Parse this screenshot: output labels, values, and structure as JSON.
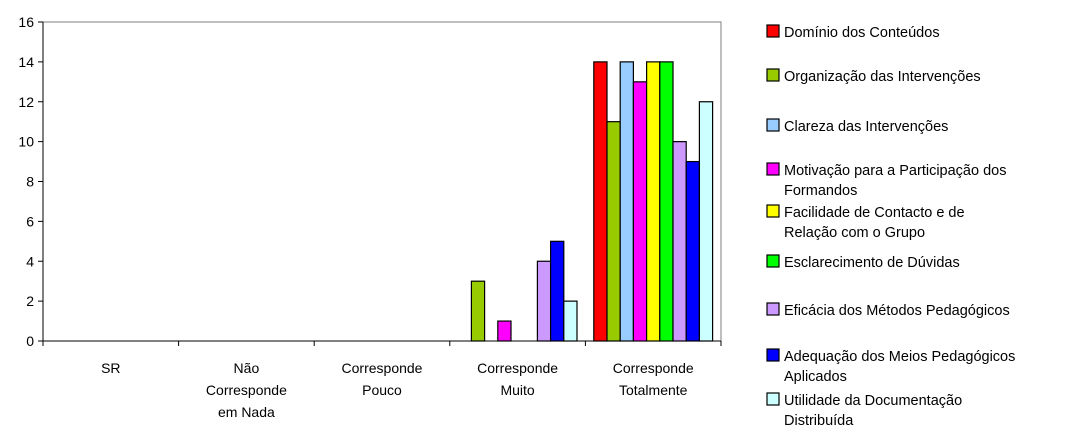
{
  "chart_data": {
    "type": "bar",
    "title": "",
    "xlabel": "",
    "ylabel": "",
    "ylim": [
      0,
      16
    ],
    "yticks": [
      0,
      2,
      4,
      6,
      8,
      10,
      12,
      14,
      16
    ],
    "grid": false,
    "legend_position": "right",
    "categories": [
      [
        "SR"
      ],
      [
        "Não",
        "Corresponde",
        "em Nada"
      ],
      [
        "Corresponde",
        "Pouco"
      ],
      [
        "Corresponde",
        "Muito"
      ],
      [
        "Corresponde",
        "Totalmente"
      ]
    ],
    "series": [
      {
        "name": [
          "Domínio dos Conteúdos"
        ],
        "color": "#ff0000",
        "values": [
          0,
          0,
          0,
          0,
          14
        ]
      },
      {
        "name": [
          "Organização das Intervenções"
        ],
        "color": "#99cc00",
        "values": [
          0,
          0,
          0,
          3,
          11
        ]
      },
      {
        "name": [
          "Clareza das Intervenções"
        ],
        "color": "#99ccff",
        "values": [
          0,
          0,
          0,
          0,
          14
        ]
      },
      {
        "name": [
          "Motivação para a Participação dos",
          "Formandos"
        ],
        "color": "#ff00ff",
        "values": [
          0,
          0,
          0,
          1,
          13
        ]
      },
      {
        "name": [
          "Facilidade de Contacto e de",
          "Relação com o Grupo"
        ],
        "color": "#ffff00",
        "values": [
          0,
          0,
          0,
          0,
          14
        ]
      },
      {
        "name": [
          "Esclarecimento de Dúvidas"
        ],
        "color": "#00ff00",
        "values": [
          0,
          0,
          0,
          0,
          14
        ]
      },
      {
        "name": [
          "Eficácia dos Métodos Pedagógicos"
        ],
        "color": "#cc99ff",
        "values": [
          0,
          0,
          0,
          4,
          10
        ]
      },
      {
        "name": [
          "Adequação dos Meios Pedagógicos",
          "Aplicados"
        ],
        "color": "#0000ff",
        "values": [
          0,
          0,
          0,
          5,
          9
        ]
      },
      {
        "name": [
          "Utilidade da Documentação",
          "Distribuída"
        ],
        "color": "#ccffff",
        "values": [
          0,
          0,
          0,
          2,
          12
        ]
      }
    ]
  }
}
